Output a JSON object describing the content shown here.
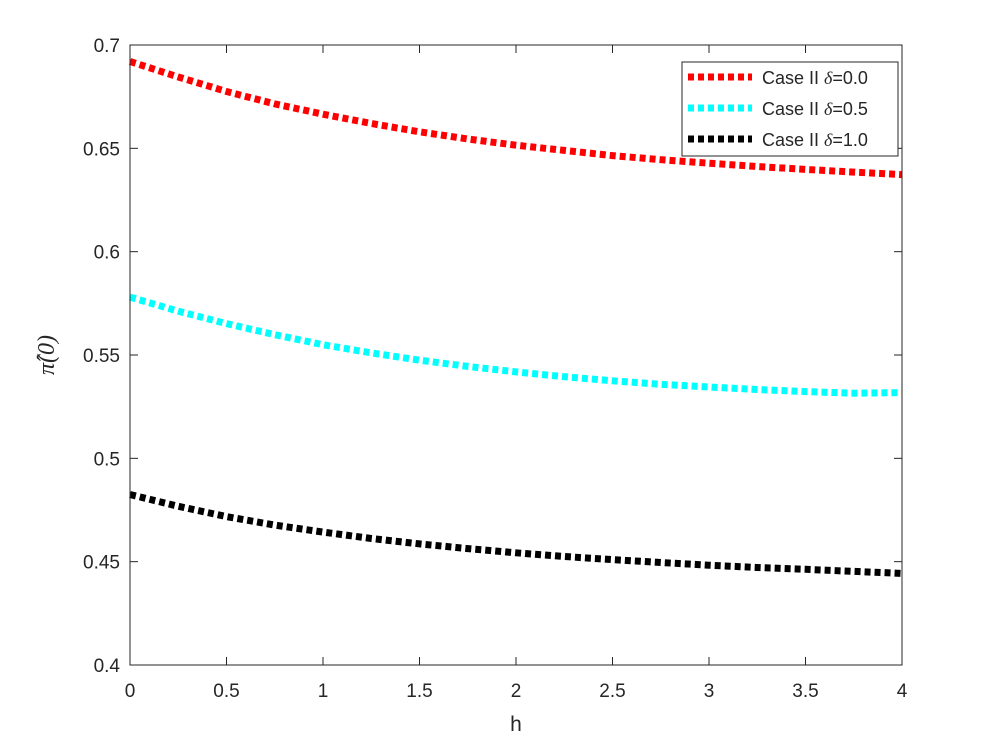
{
  "chart_data": {
    "type": "line",
    "xlabel": "h",
    "ylabel": "π̂(0)",
    "xlim": [
      0,
      4
    ],
    "ylim": [
      0.4,
      0.7
    ],
    "xticks": [
      0,
      0.5,
      1,
      1.5,
      2,
      2.5,
      3,
      3.5,
      4
    ],
    "xtick_labels": [
      "0",
      "0.5",
      "1",
      "1.5",
      "2",
      "2.5",
      "3",
      "3.5",
      "4"
    ],
    "yticks": [
      0.4,
      0.45,
      0.5,
      0.55,
      0.6,
      0.65,
      0.7
    ],
    "ytick_labels": [
      "0.4",
      "0.45",
      "0.5",
      "0.55",
      "0.6",
      "0.65",
      "0.7"
    ],
    "grid": false,
    "legend_position": "top-right",
    "x": [
      0,
      0.25,
      0.5,
      0.75,
      1,
      1.25,
      1.5,
      1.75,
      2,
      2.25,
      2.5,
      2.75,
      3,
      3.25,
      3.5,
      3.75,
      4
    ],
    "series": [
      {
        "name": "Case II δ=0.0",
        "legend_prefix": "Case II ",
        "legend_symbol": "δ",
        "legend_suffix": "=0.0",
        "color": "#ff0000",
        "values": [
          0.692,
          0.6845,
          0.6775,
          0.6715,
          0.6665,
          0.662,
          0.658,
          0.6545,
          0.6515,
          0.649,
          0.6465,
          0.6445,
          0.6428,
          0.6412,
          0.6398,
          0.6385,
          0.6373
        ]
      },
      {
        "name": "Case II δ=0.5",
        "legend_prefix": "Case II ",
        "legend_symbol": "δ",
        "legend_suffix": "=0.5",
        "color": "#00ffff",
        "values": [
          0.578,
          0.5712,
          0.5652,
          0.5598,
          0.555,
          0.551,
          0.5475,
          0.5445,
          0.5418,
          0.5395,
          0.5375,
          0.5358,
          0.5345,
          0.5333,
          0.5323,
          0.5315,
          0.5318
        ]
      },
      {
        "name": "Case II δ=1.0",
        "legend_prefix": "Case II ",
        "legend_symbol": "δ",
        "legend_suffix": "=1.0",
        "color": "#000000",
        "values": [
          0.4825,
          0.4768,
          0.4718,
          0.4677,
          0.4643,
          0.4612,
          0.4586,
          0.4563,
          0.4543,
          0.4525,
          0.451,
          0.4496,
          0.4483,
          0.4472,
          0.4463,
          0.4453,
          0.4443
        ]
      }
    ]
  }
}
